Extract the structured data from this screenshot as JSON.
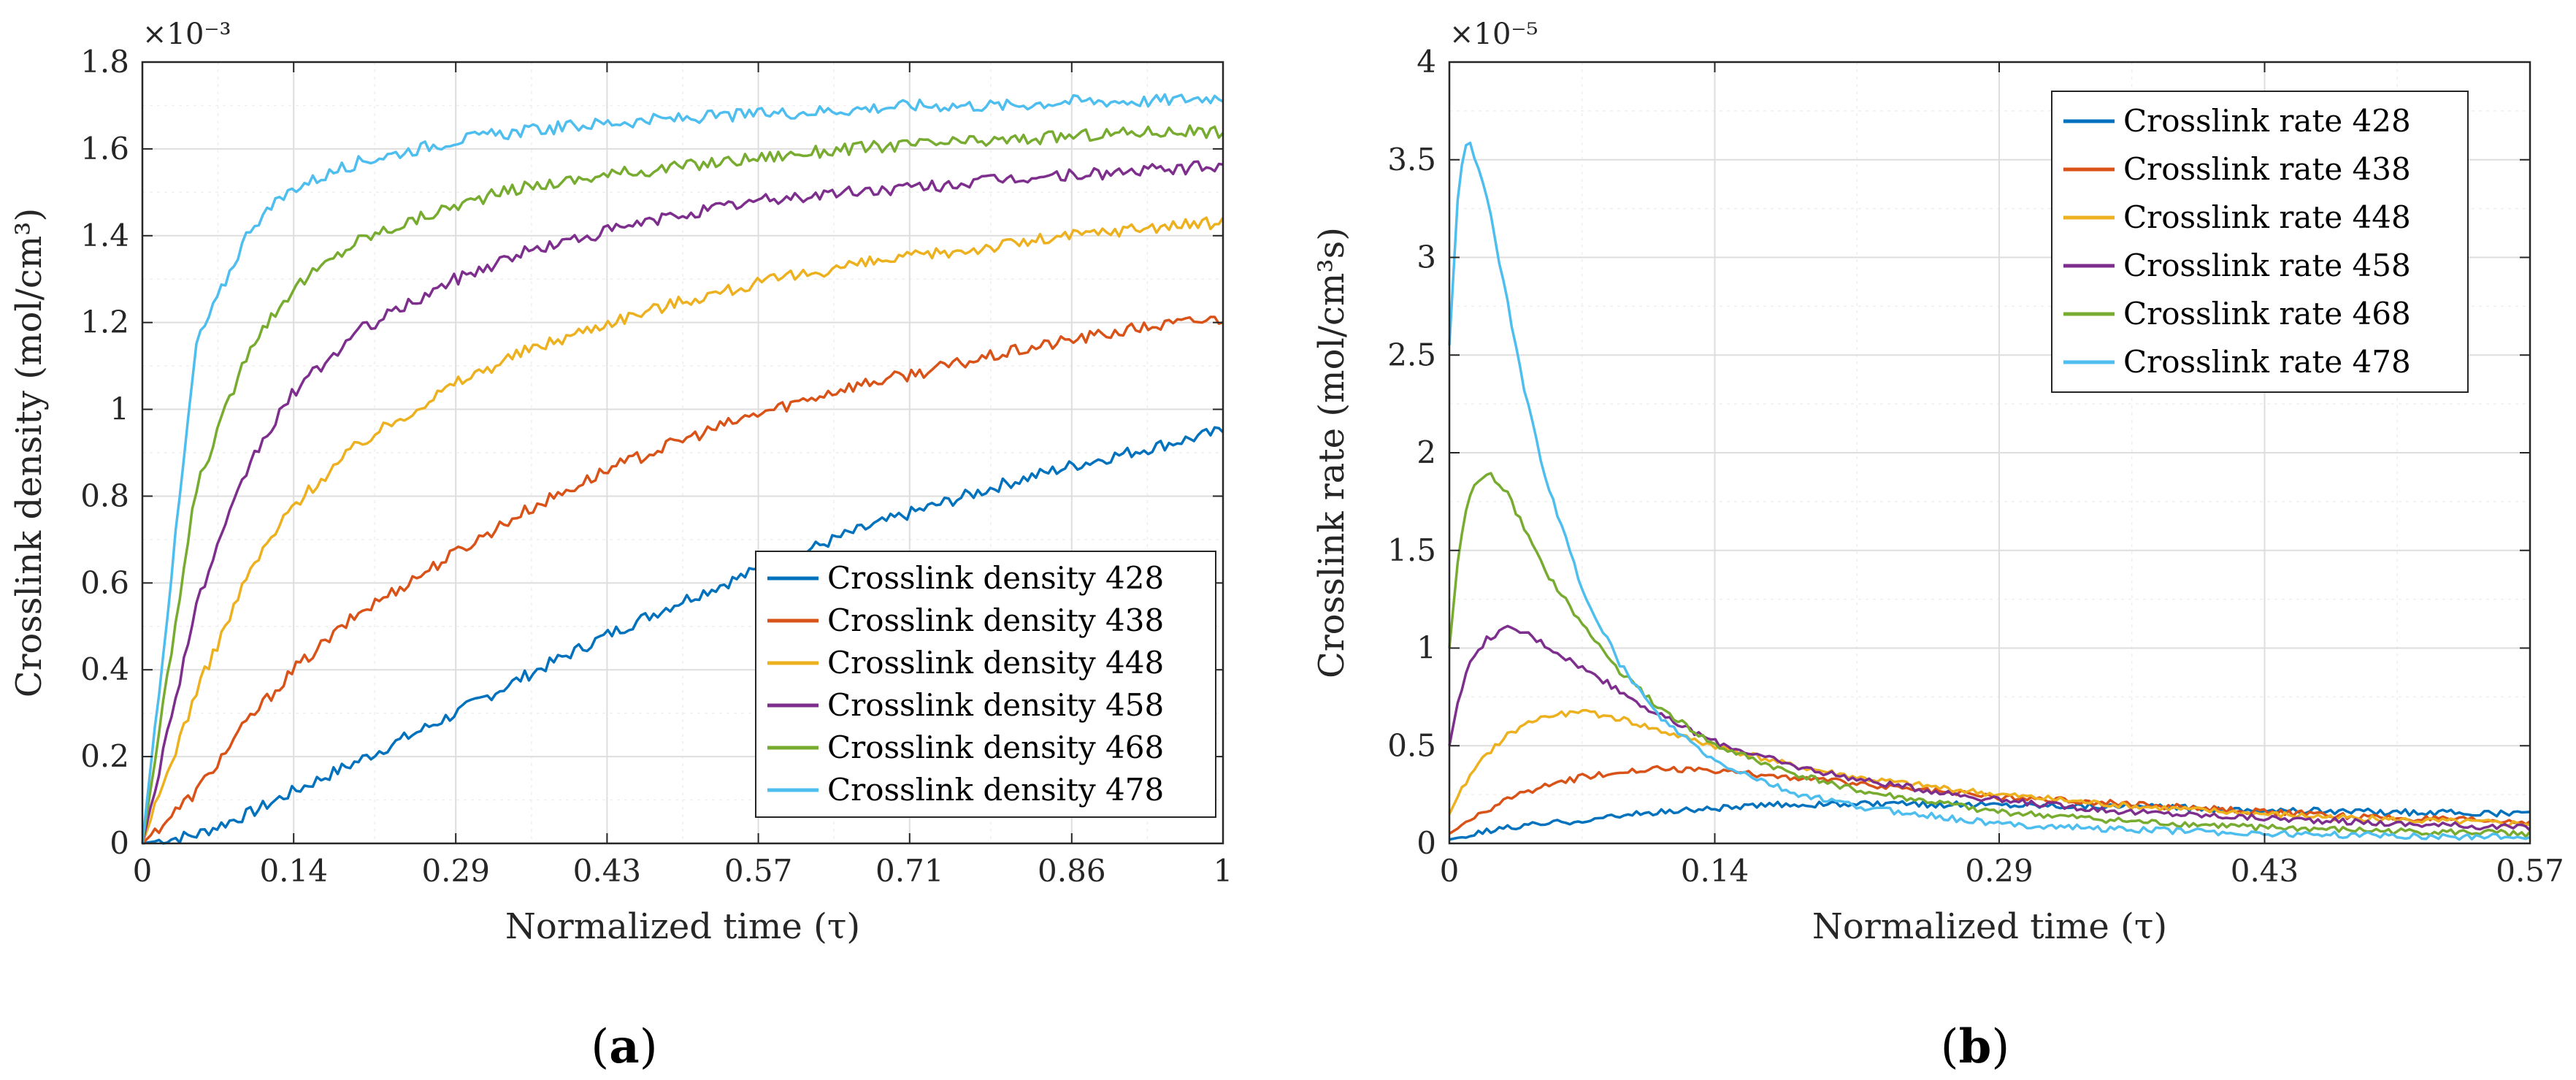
{
  "chart_data": [
    {
      "type": "line",
      "panel_label": "a",
      "exponent_label": "×10⁻³",
      "ylabel": "Crosslink density (mol/cm³)",
      "xlabel": "Normalized time (τ)",
      "xlim": [
        0,
        1
      ],
      "ylim": [
        0,
        1.8
      ],
      "xticks": [
        0,
        0.14,
        0.29,
        0.43,
        0.57,
        0.71,
        0.86,
        1
      ],
      "xtick_labels": [
        "0",
        "0.14",
        "0.29",
        "0.43",
        "0.57",
        "0.71",
        "0.86",
        "1"
      ],
      "yticks": [
        0,
        0.2,
        0.4,
        0.6,
        0.8,
        1,
        1.2,
        1.4,
        1.6,
        1.8
      ],
      "ytick_labels": [
        "0",
        "0.2",
        "0.4",
        "0.6",
        "0.8",
        "1",
        "1.2",
        "1.4",
        "1.6",
        "1.8"
      ],
      "grid": true,
      "legend_position": "bottom-right",
      "x": [
        0,
        0.05,
        0.1,
        0.14,
        0.2,
        0.29,
        0.35,
        0.43,
        0.5,
        0.57,
        0.65,
        0.71,
        0.8,
        0.86,
        0.93,
        1.0
      ],
      "series": [
        {
          "name": "Crosslink density 428",
          "color": "#0072BD",
          "values": [
            0,
            0.02,
            0.07,
            0.12,
            0.19,
            0.3,
            0.38,
            0.48,
            0.56,
            0.63,
            0.71,
            0.76,
            0.83,
            0.87,
            0.91,
            0.95
          ]
        },
        {
          "name": "Crosslink density 438",
          "color": "#D95319",
          "values": [
            0,
            0.12,
            0.29,
            0.4,
            0.53,
            0.67,
            0.76,
            0.86,
            0.93,
            0.99,
            1.05,
            1.08,
            1.13,
            1.16,
            1.19,
            1.21
          ]
        },
        {
          "name": "Crosslink density 448",
          "color": "#EDB120",
          "values": [
            0,
            0.35,
            0.63,
            0.78,
            0.92,
            1.06,
            1.13,
            1.2,
            1.25,
            1.29,
            1.33,
            1.35,
            1.38,
            1.4,
            1.42,
            1.43
          ]
        },
        {
          "name": "Crosslink density 458",
          "color": "#7E2F8E",
          "values": [
            0,
            0.55,
            0.88,
            1.04,
            1.18,
            1.3,
            1.36,
            1.41,
            1.45,
            1.48,
            1.5,
            1.51,
            1.53,
            1.54,
            1.55,
            1.56
          ]
        },
        {
          "name": "Crosslink density 468",
          "color": "#77AC30",
          "values": [
            0,
            0.82,
            1.15,
            1.28,
            1.39,
            1.47,
            1.51,
            1.54,
            1.56,
            1.58,
            1.6,
            1.61,
            1.62,
            1.63,
            1.64,
            1.64
          ]
        },
        {
          "name": "Crosslink density 478",
          "color": "#4DBEEE",
          "values": [
            0,
            1.15,
            1.42,
            1.51,
            1.57,
            1.62,
            1.64,
            1.66,
            1.67,
            1.68,
            1.69,
            1.7,
            1.7,
            1.71,
            1.71,
            1.72
          ]
        }
      ]
    },
    {
      "type": "line",
      "panel_label": "b",
      "exponent_label": "×10⁻⁵",
      "ylabel": "Crosslink rate (mol/cm³s)",
      "xlabel": "Normalized time (τ)",
      "xlim": [
        0,
        0.57
      ],
      "ylim": [
        0,
        4
      ],
      "xticks": [
        0,
        0.14,
        0.29,
        0.43,
        0.57
      ],
      "xtick_labels": [
        "0",
        "0.14",
        "0.29",
        "0.43",
        "0.57"
      ],
      "yticks": [
        0,
        0.5,
        1,
        1.5,
        2,
        2.5,
        3,
        3.5,
        4
      ],
      "ytick_labels": [
        "0",
        "0.5",
        "1",
        "1.5",
        "2",
        "2.5",
        "3",
        "3.5",
        "4"
      ],
      "grid": true,
      "legend_position": "top-right",
      "x": [
        0,
        0.005,
        0.01,
        0.02,
        0.03,
        0.04,
        0.05,
        0.07,
        0.09,
        0.11,
        0.14,
        0.18,
        0.22,
        0.29,
        0.36,
        0.43,
        0.5,
        0.57
      ],
      "series": [
        {
          "name": "Crosslink rate 428",
          "color": "#0072BD",
          "values": [
            0.02,
            0.03,
            0.04,
            0.06,
            0.08,
            0.09,
            0.1,
            0.12,
            0.14,
            0.16,
            0.18,
            0.2,
            0.2,
            0.2,
            0.19,
            0.17,
            0.16,
            0.15
          ]
        },
        {
          "name": "Crosslink rate 438",
          "color": "#D95319",
          "values": [
            0.05,
            0.08,
            0.11,
            0.17,
            0.22,
            0.26,
            0.29,
            0.34,
            0.37,
            0.38,
            0.37,
            0.34,
            0.3,
            0.24,
            0.2,
            0.16,
            0.13,
            0.11
          ]
        },
        {
          "name": "Crosslink rate 448",
          "color": "#EDB120",
          "values": [
            0.15,
            0.25,
            0.33,
            0.46,
            0.55,
            0.61,
            0.65,
            0.67,
            0.64,
            0.58,
            0.5,
            0.4,
            0.33,
            0.25,
            0.19,
            0.15,
            0.12,
            0.1
          ]
        },
        {
          "name": "Crosslink rate 458",
          "color": "#7E2F8E",
          "values": [
            0.5,
            0.75,
            0.9,
            1.05,
            1.1,
            1.08,
            1.02,
            0.9,
            0.78,
            0.66,
            0.52,
            0.4,
            0.32,
            0.22,
            0.16,
            0.13,
            0.1,
            0.08
          ]
        },
        {
          "name": "Crosslink rate 468",
          "color": "#77AC30",
          "values": [
            1.0,
            1.5,
            1.78,
            1.9,
            1.8,
            1.6,
            1.4,
            1.12,
            0.88,
            0.7,
            0.5,
            0.36,
            0.26,
            0.16,
            0.11,
            0.08,
            0.06,
            0.05
          ]
        },
        {
          "name": "Crosslink rate 478",
          "color": "#4DBEEE",
          "values": [
            2.55,
            3.4,
            3.62,
            3.3,
            2.8,
            2.3,
            1.9,
            1.3,
            0.92,
            0.65,
            0.42,
            0.26,
            0.18,
            0.1,
            0.07,
            0.05,
            0.04,
            0.03
          ]
        }
      ]
    }
  ]
}
